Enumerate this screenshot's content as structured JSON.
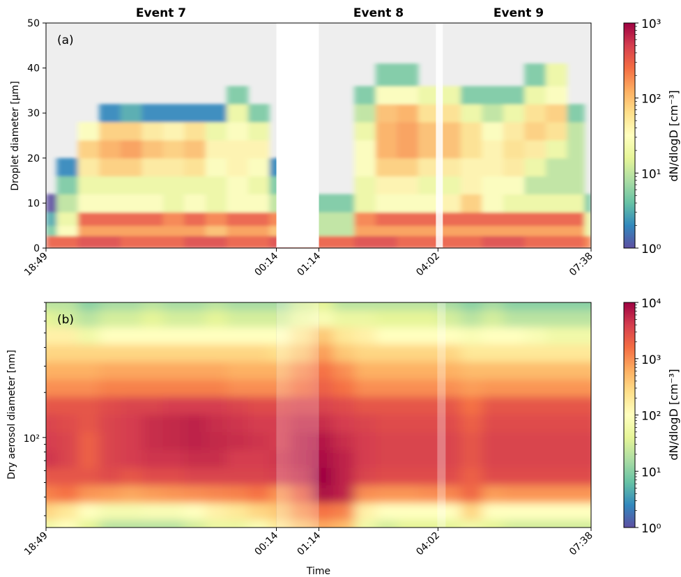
{
  "figure": {
    "x_label": "Time",
    "time_ticks": [
      "18:49",
      "00:14",
      "01:14",
      "04:02",
      "07:38"
    ],
    "event_labels": [
      "Event 7",
      "Event 8",
      "Event 9"
    ]
  },
  "panel_a": {
    "panel_label": "(a)",
    "y_label": "Droplet diameter [µm]",
    "y_ticks": [
      "0",
      "10",
      "20",
      "30",
      "40",
      "50"
    ],
    "colorbar_label": "dN/dlogD [cm⁻³]",
    "colorbar_ticks": [
      "10⁰",
      "10¹",
      "10²",
      "10³"
    ]
  },
  "panel_b": {
    "panel_label": "(b)",
    "y_label": "Dry aerosol diameter [nm]",
    "y_ticks": [
      "10²"
    ],
    "colorbar_label": "dN/dlogD [cm⁻³]",
    "colorbar_ticks": [
      "10⁰",
      "10¹",
      "10²",
      "10³",
      "10⁴"
    ]
  },
  "colors": {
    "colormap": "Spectral_r",
    "event_shading": "#eeeeee",
    "gap_shading": "#ffffff"
  },
  "chart_data": [
    {
      "type": "heatmap",
      "title": "",
      "xlabel": "",
      "ylabel": "Droplet diameter [µm]",
      "x_range": [
        "18:49",
        "07:38"
      ],
      "ylim": [
        0,
        50
      ],
      "color_scale": "log",
      "clim": [
        1,
        1000
      ],
      "colorbar_label": "dN/dlogD [cm⁻³]",
      "events": [
        {
          "name": "Event 7",
          "start": "18:49",
          "end": "00:14"
        },
        {
          "name": "Event 8",
          "start": "01:14",
          "end": "04:02"
        },
        {
          "name": "Event 9",
          "start": "04:02",
          "end": "07:38"
        }
      ],
      "x_hours": [
        0,
        0.5,
        1,
        1.5,
        2,
        2.5,
        3,
        3.5,
        4,
        4.5,
        5,
        5.5,
        6,
        6.5,
        7,
        7.5,
        8,
        8.5,
        9,
        9.5,
        10,
        10.5,
        11,
        11.5,
        12,
        12.5,
        12.82
      ],
      "y_diameter_um": [
        1.5,
        4,
        6,
        10,
        14,
        18,
        22,
        26,
        30,
        34,
        38
      ],
      "dNdlogD": [
        [
          300,
          300,
          400,
          400,
          300,
          300,
          300,
          400,
          400,
          300,
          300,
          400,
          300,
          300,
          300,
          400,
          400,
          300,
          300,
          300,
          300,
          400,
          400,
          300,
          300,
          300,
          200
        ],
        [
          5,
          30,
          150,
          150,
          150,
          150,
          150,
          150,
          100,
          150,
          150,
          100,
          30,
          10,
          10,
          150,
          150,
          150,
          150,
          150,
          150,
          150,
          150,
          150,
          150,
          150,
          20
        ],
        [
          3,
          20,
          300,
          300,
          300,
          300,
          200,
          300,
          200,
          300,
          300,
          200,
          30,
          10,
          10,
          200,
          300,
          300,
          300,
          300,
          300,
          300,
          300,
          300,
          300,
          300,
          20
        ],
        [
          1,
          10,
          30,
          30,
          30,
          30,
          20,
          30,
          20,
          30,
          30,
          10,
          10,
          5,
          5,
          20,
          30,
          30,
          30,
          40,
          80,
          30,
          20,
          20,
          20,
          20,
          5
        ],
        [
          0,
          5,
          20,
          20,
          20,
          20,
          20,
          20,
          20,
          30,
          20,
          5,
          5,
          0,
          0,
          20,
          40,
          40,
          20,
          20,
          40,
          30,
          30,
          10,
          10,
          10,
          0
        ],
        [
          0,
          2,
          50,
          80,
          80,
          50,
          50,
          60,
          30,
          40,
          30,
          2,
          0,
          0,
          0,
          30,
          80,
          80,
          50,
          50,
          40,
          40,
          50,
          20,
          10,
          10,
          0
        ],
        [
          0,
          0,
          80,
          120,
          150,
          100,
          80,
          100,
          40,
          40,
          40,
          0,
          0,
          0,
          0,
          30,
          120,
          150,
          100,
          100,
          60,
          40,
          60,
          50,
          20,
          10,
          0
        ],
        [
          0,
          0,
          30,
          80,
          80,
          50,
          40,
          60,
          20,
          30,
          20,
          0,
          0,
          0,
          0,
          20,
          120,
          150,
          100,
          100,
          60,
          30,
          50,
          80,
          60,
          10,
          0
        ],
        [
          0,
          0,
          0,
          2,
          3,
          2,
          2,
          2,
          2,
          20,
          5,
          0,
          0,
          0,
          0,
          10,
          100,
          120,
          60,
          60,
          20,
          10,
          20,
          60,
          80,
          5,
          0
        ],
        [
          0,
          0,
          0,
          0,
          0,
          0,
          0,
          0,
          0,
          5,
          0,
          0,
          0,
          0,
          0,
          5,
          30,
          30,
          20,
          20,
          5,
          5,
          5,
          20,
          30,
          0,
          0
        ],
        [
          0,
          0,
          0,
          0,
          0,
          0,
          0,
          0,
          0,
          0,
          0,
          0,
          0,
          0,
          0,
          0,
          5,
          5,
          0,
          0,
          0,
          0,
          0,
          5,
          20,
          0,
          0
        ]
      ]
    },
    {
      "type": "heatmap",
      "title": "",
      "xlabel": "Time",
      "ylabel": "Dry aerosol diameter [nm]",
      "x_range": [
        "18:49",
        "07:38"
      ],
      "y_scale": "log",
      "ylim": [
        25,
        800
      ],
      "color_scale": "log",
      "clim": [
        1,
        10000
      ],
      "colorbar_label": "dN/dlogD [cm⁻³]",
      "x_hours": [
        0,
        0.5,
        1,
        1.5,
        2,
        2.5,
        3,
        3.5,
        4,
        4.5,
        5,
        5.5,
        6,
        6.5,
        7,
        7.5,
        8,
        8.5,
        9,
        9.5,
        10,
        10.5,
        11,
        11.5,
        12,
        12.5,
        12.82
      ],
      "y_diameter_nm": [
        25,
        32,
        42,
        55,
        72,
        95,
        125,
        165,
        215,
        280,
        370,
        480,
        630,
        800
      ],
      "dNdlogD": [
        [
          60,
          100,
          40,
          20,
          20,
          20,
          20,
          30,
          50,
          50,
          80,
          200,
          400,
          700,
          500,
          60,
          30,
          40,
          40,
          40,
          60,
          40,
          30,
          30,
          30,
          30,
          30
        ],
        [
          300,
          200,
          100,
          70,
          70,
          80,
          80,
          100,
          150,
          200,
          300,
          400,
          900,
          1500,
          1200,
          150,
          100,
          100,
          100,
          100,
          300,
          100,
          100,
          100,
          100,
          100,
          100
        ],
        [
          1200,
          1500,
          900,
          800,
          700,
          800,
          900,
          1000,
          1100,
          1200,
          1500,
          900,
          2000,
          8000,
          6000,
          1000,
          900,
          900,
          1000,
          1100,
          1800,
          800,
          900,
          900,
          900,
          900,
          900
        ],
        [
          2500,
          2500,
          2500,
          3000,
          2500,
          3000,
          3000,
          3500,
          3500,
          3500,
          3500,
          4000,
          5000,
          12000,
          6000,
          3500,
          3000,
          3000,
          3000,
          3000,
          2000,
          3000,
          3000,
          3000,
          3000,
          3000,
          3000
        ],
        [
          4500,
          3500,
          2000,
          3500,
          4000,
          4500,
          4500,
          5000,
          5000,
          4000,
          4000,
          4500,
          6000,
          8000,
          6000,
          4000,
          3500,
          3500,
          3500,
          3500,
          2500,
          3500,
          3500,
          3500,
          3500,
          3500,
          3500
        ],
        [
          4000,
          3500,
          2000,
          3500,
          4000,
          5000,
          5500,
          6000,
          5500,
          5000,
          4500,
          4000,
          6000,
          7000,
          5000,
          4000,
          3500,
          3500,
          3500,
          3500,
          2500,
          3500,
          3500,
          3500,
          3500,
          3500,
          3500
        ],
        [
          3500,
          3000,
          2500,
          3500,
          4000,
          5000,
          5500,
          6000,
          5000,
          4500,
          4000,
          4000,
          5000,
          5000,
          4000,
          3500,
          3000,
          3000,
          3000,
          3000,
          2000,
          3000,
          3000,
          3000,
          3000,
          3000,
          3000
        ],
        [
          2500,
          2500,
          2500,
          3000,
          3500,
          3500,
          4000,
          4000,
          4000,
          3500,
          3000,
          3000,
          3500,
          3500,
          3000,
          2500,
          2500,
          2500,
          2500,
          2500,
          1500,
          2500,
          2500,
          2500,
          2500,
          2500,
          2500
        ],
        [
          1000,
          1000,
          1000,
          1200,
          1200,
          1200,
          1200,
          1200,
          1200,
          1000,
          1000,
          1000,
          1500,
          2000,
          1500,
          1000,
          1000,
          1000,
          1000,
          1000,
          800,
          900,
          900,
          900,
          900,
          900,
          900
        ],
        [
          600,
          600,
          600,
          700,
          700,
          700,
          700,
          700,
          700,
          600,
          600,
          600,
          1000,
          1500,
          1000,
          600,
          600,
          600,
          600,
          600,
          500,
          500,
          500,
          500,
          500,
          500,
          500
        ],
        [
          300,
          300,
          300,
          300,
          300,
          300,
          300,
          300,
          300,
          300,
          300,
          250,
          400,
          800,
          400,
          300,
          300,
          300,
          300,
          300,
          200,
          200,
          200,
          200,
          200,
          200,
          200
        ],
        [
          150,
          150,
          60,
          100,
          100,
          100,
          100,
          100,
          100,
          100,
          100,
          100,
          200,
          400,
          200,
          150,
          100,
          100,
          100,
          100,
          80,
          100,
          100,
          80,
          60,
          60,
          60
        ],
        [
          40,
          30,
          20,
          30,
          30,
          40,
          30,
          30,
          40,
          30,
          30,
          30,
          60,
          80,
          50,
          50,
          40,
          40,
          40,
          30,
          20,
          30,
          20,
          20,
          20,
          20,
          20
        ],
        [
          20,
          20,
          10,
          15,
          15,
          20,
          15,
          15,
          20,
          15,
          15,
          15,
          30,
          40,
          20,
          20,
          20,
          20,
          20,
          15,
          10,
          15,
          10,
          10,
          10,
          10,
          10
        ]
      ]
    }
  ]
}
